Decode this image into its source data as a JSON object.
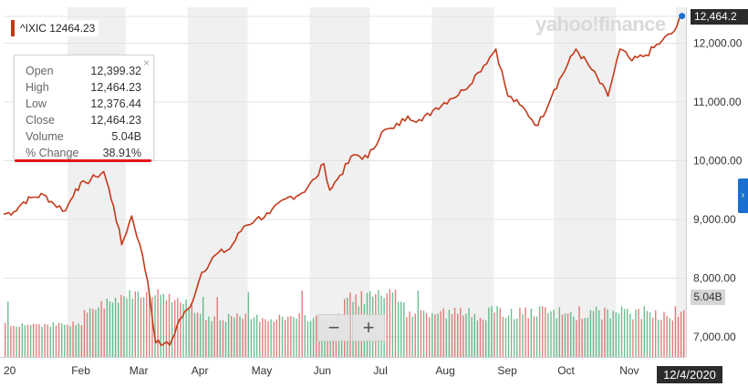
{
  "header": {
    "logo_text": "yahoo!finance",
    "ticker_label": "^IXIC 12464.23"
  },
  "tooltip": {
    "rows": [
      {
        "key": "Open",
        "value": "12,399.32"
      },
      {
        "key": "High",
        "value": "12,464.23"
      },
      {
        "key": "Low",
        "value": "12,376.44"
      },
      {
        "key": "Close",
        "value": "12,464.23"
      },
      {
        "key": "Volume",
        "value": "5.04B"
      },
      {
        "key": "% Change",
        "value": "38.91%"
      }
    ],
    "close_glyph": "×"
  },
  "badges": {
    "last_price": "12,464.2",
    "last_volume": "5.04B",
    "current_date": "12/4/2020"
  },
  "controls": {
    "zoom_out": "−",
    "zoom_in": "+",
    "scroll_right": "›"
  },
  "colors": {
    "line": "#c23a1a",
    "vol_up": "#3aa86a",
    "vol_down": "#d9534f",
    "band": "#f0f0f0"
  },
  "chart_data": {
    "type": "line",
    "title": "^IXIC",
    "series": [
      {
        "name": "^IXIC",
        "x": [
          "2019-12-31",
          "2020-01-05",
          "2020-01-10",
          "2020-01-15",
          "2020-01-20",
          "2020-01-25",
          "2020-01-31",
          "2020-02-05",
          "2020-02-10",
          "2020-02-15",
          "2020-02-19",
          "2020-02-24",
          "2020-02-28",
          "2020-03-04",
          "2020-03-08",
          "2020-03-12",
          "2020-03-16",
          "2020-03-20",
          "2020-03-23",
          "2020-03-28",
          "2020-04-02",
          "2020-04-08",
          "2020-04-15",
          "2020-04-22",
          "2020-04-29",
          "2020-05-05",
          "2020-05-12",
          "2020-05-20",
          "2020-05-28",
          "2020-06-04",
          "2020-06-08",
          "2020-06-11",
          "2020-06-16",
          "2020-06-23",
          "2020-06-30",
          "2020-07-07",
          "2020-07-13",
          "2020-07-20",
          "2020-07-27",
          "2020-08-03",
          "2020-08-10",
          "2020-08-17",
          "2020-08-24",
          "2020-09-02",
          "2020-09-08",
          "2020-09-14",
          "2020-09-23",
          "2020-10-01",
          "2020-10-12",
          "2020-10-20",
          "2020-10-28",
          "2020-11-03",
          "2020-11-09",
          "2020-11-16",
          "2020-11-24",
          "2020-11-30",
          "2020-12-04"
        ],
        "values": [
          9090,
          9130,
          9300,
          9380,
          9420,
          9270,
          9150,
          9520,
          9630,
          9730,
          9817,
          9220,
          8570,
          9060,
          8580,
          7950,
          6900,
          6880,
          6860,
          7300,
          7500,
          8100,
          8400,
          8500,
          8880,
          9000,
          9100,
          9350,
          9450,
          9700,
          9950,
          9500,
          9750,
          10100,
          10050,
          10490,
          10550,
          10760,
          10680,
          10900,
          11050,
          11200,
          11500,
          11900,
          11100,
          10950,
          10600,
          11200,
          11900,
          11550,
          11100,
          11900,
          11700,
          11800,
          12040,
          12200,
          12464
        ]
      }
    ],
    "volume": {
      "name": "Volume",
      "unit": "B",
      "last_value": 5.04
    },
    "x_tick_labels": [
      "20",
      "Feb",
      "Mar",
      "Apr",
      "May",
      "Jun",
      "Jul",
      "Aug",
      "Sep",
      "Oct",
      "Nov"
    ],
    "y_tick_labels": [
      "12,000.00",
      "11,000.00",
      "10,000.00",
      "9,000.00",
      "8,000.00",
      "7,000.00"
    ],
    "y_ticks": [
      12000,
      11000,
      10000,
      9000,
      8000,
      7000
    ],
    "ylim": [
      6700,
      12700
    ],
    "xlim": [
      "2019-12-31",
      "2020-12-06"
    ],
    "grid": true,
    "legend": "top-left"
  }
}
